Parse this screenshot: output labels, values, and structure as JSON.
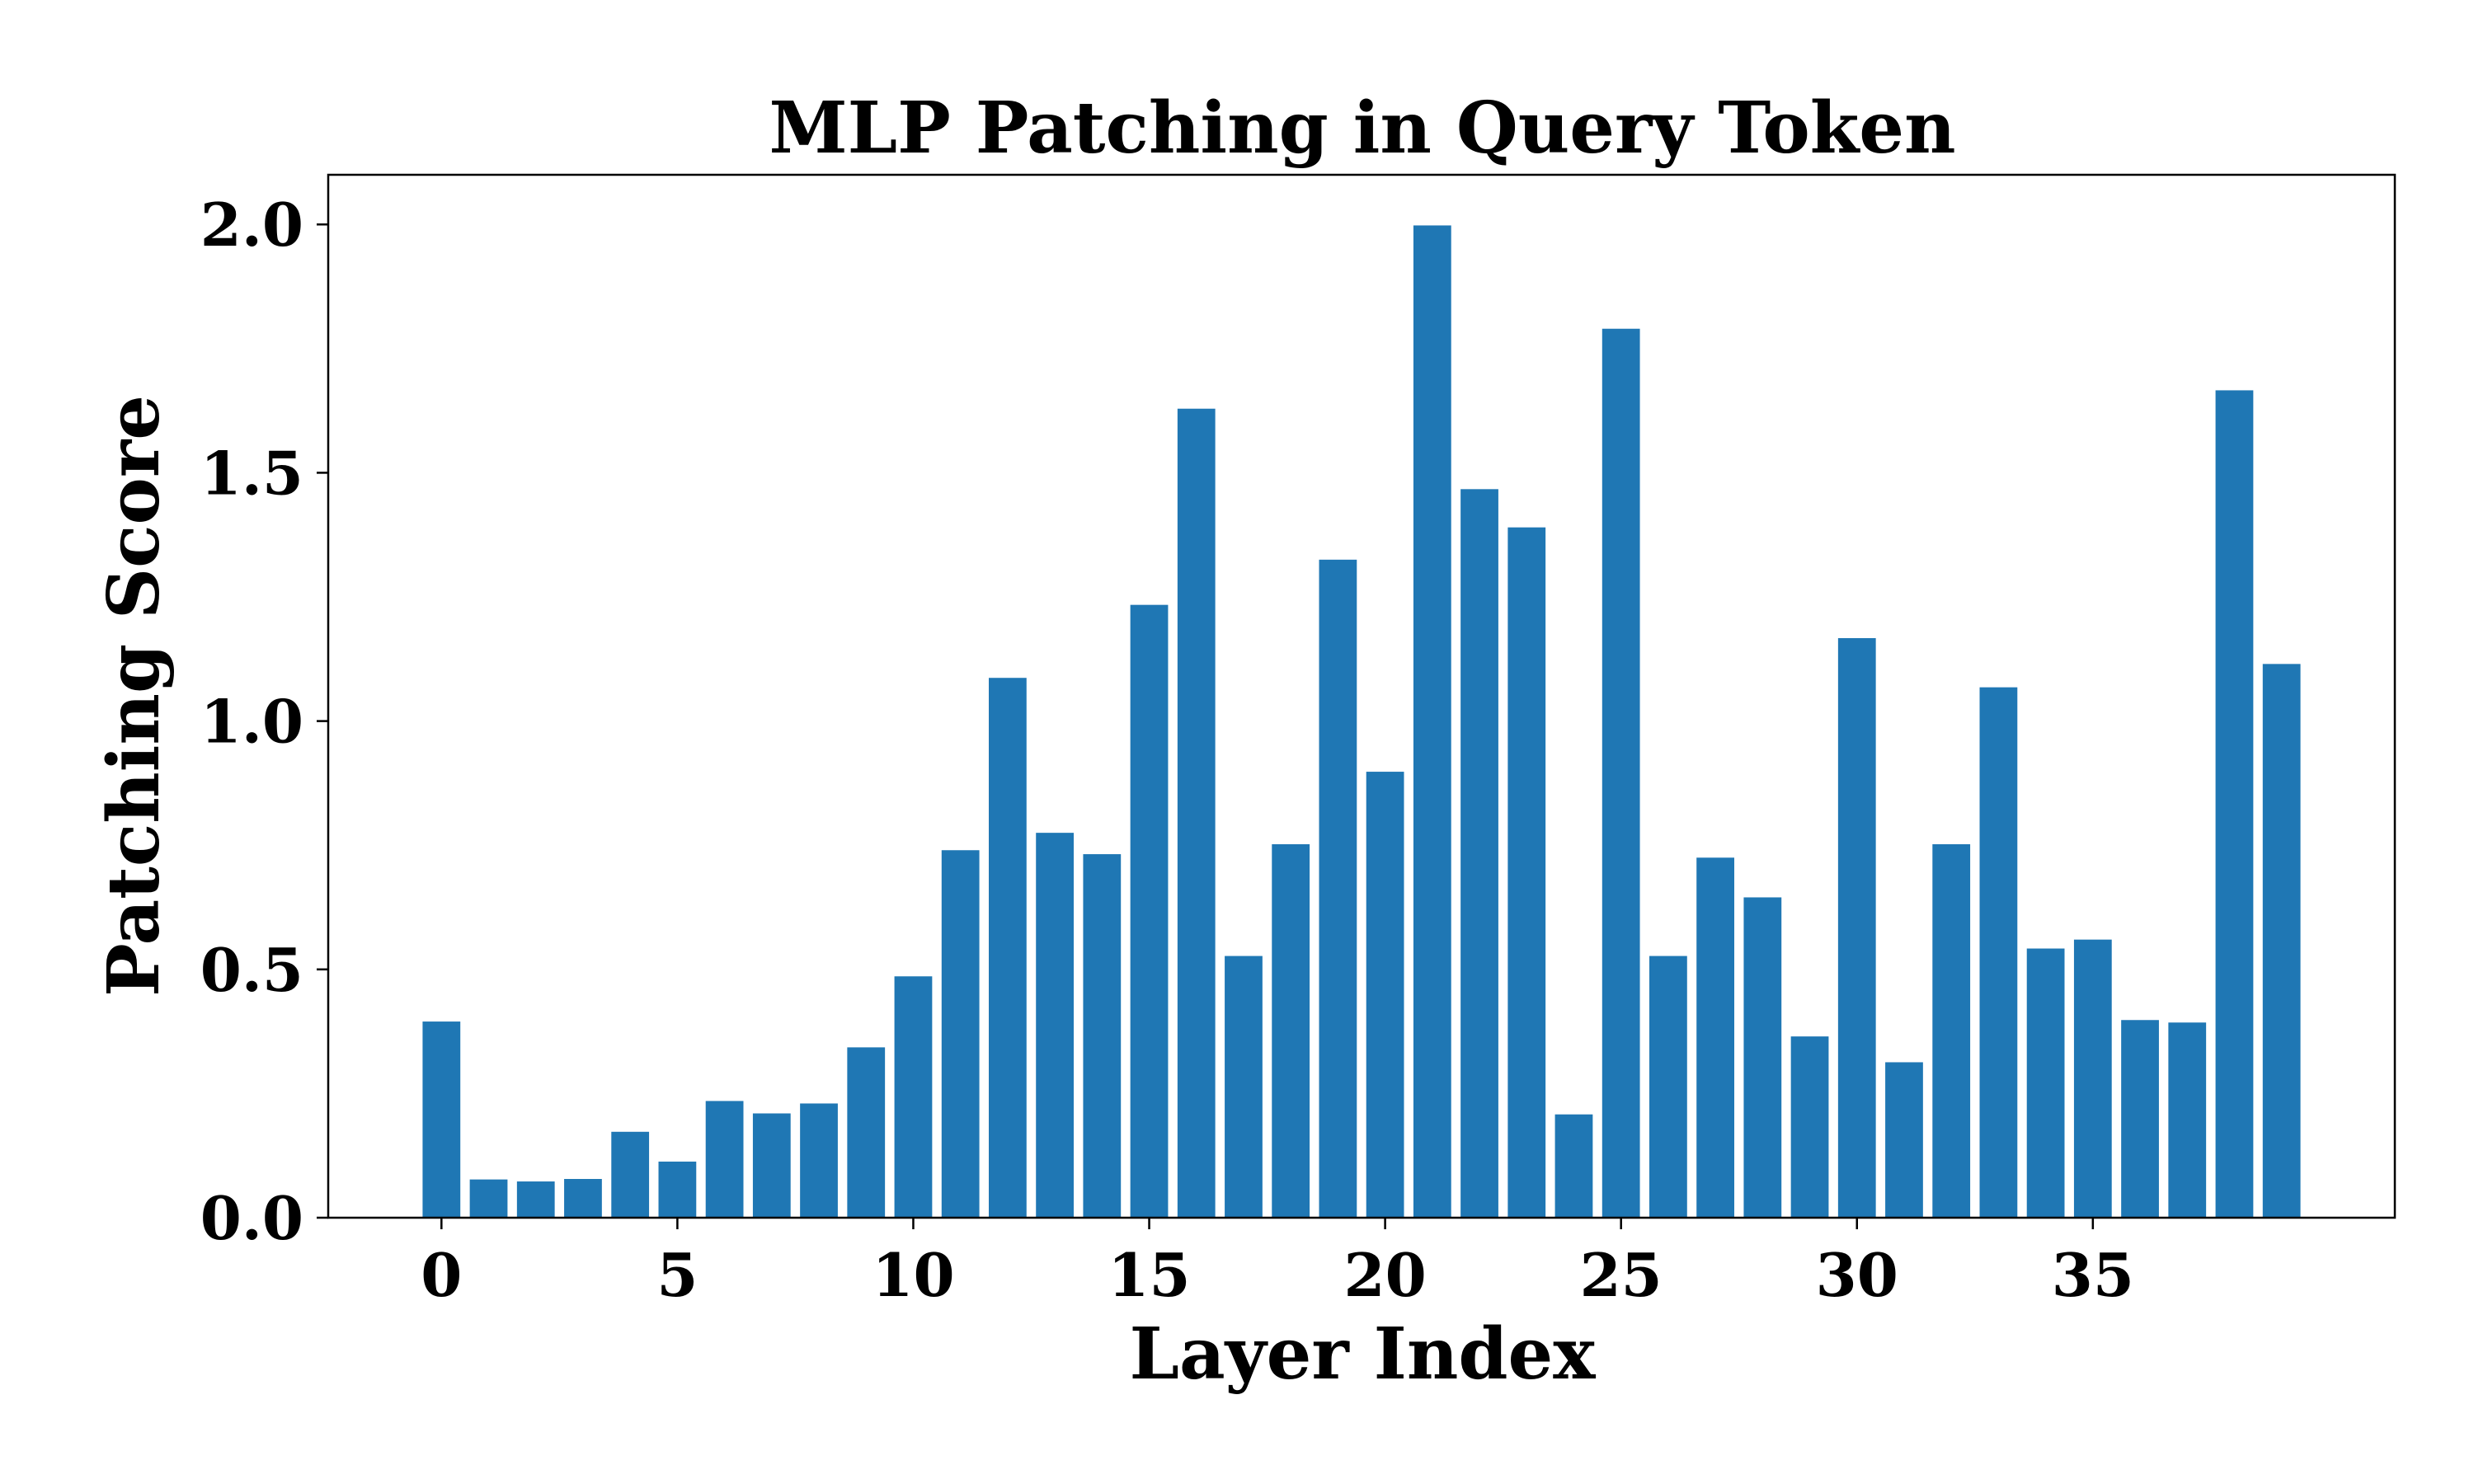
{
  "chart_data": {
    "type": "bar",
    "title": "MLP Patching in Query Token",
    "xlabel": "Layer Index",
    "ylabel": "Patching Score",
    "x": [
      0,
      1,
      2,
      3,
      4,
      5,
      6,
      7,
      8,
      9,
      10,
      11,
      12,
      13,
      14,
      15,
      16,
      17,
      18,
      19,
      20,
      21,
      22,
      23,
      24,
      25,
      26,
      27,
      28,
      29,
      30,
      31,
      32,
      33,
      34,
      35,
      36,
      37,
      38,
      39
    ],
    "values": [
      0.395,
      0.077,
      0.073,
      0.078,
      0.173,
      0.113,
      0.235,
      0.21,
      0.23,
      0.343,
      0.486,
      0.74,
      1.087,
      0.775,
      0.732,
      1.234,
      1.629,
      0.527,
      0.752,
      1.325,
      0.898,
      1.998,
      1.467,
      1.39,
      0.208,
      1.79,
      0.527,
      0.725,
      0.645,
      0.365,
      1.167,
      0.313,
      0.752,
      1.068,
      0.542,
      0.56,
      0.398,
      0.393,
      1.666,
      1.115
    ],
    "xticks": [
      "0",
      "5",
      "10",
      "15",
      "20",
      "25",
      "30",
      "35"
    ],
    "yticks": [
      "0.0",
      "0.5",
      "1.0",
      "1.5",
      "2.0"
    ],
    "xlim": [
      -2.4,
      41.4
    ],
    "ylim": [
      0,
      2.1
    ],
    "bar_color": "#1f77b4",
    "grid": false,
    "legend": "none"
  }
}
